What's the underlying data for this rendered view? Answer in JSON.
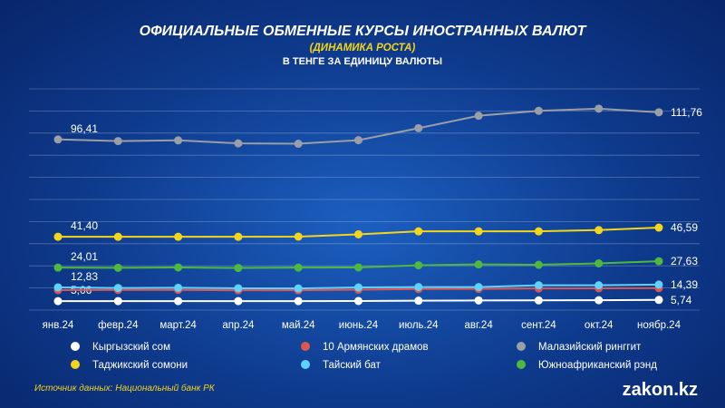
{
  "header": {
    "title": "ОФИЦИАЛЬНЫЕ ОБМЕННЫЕ КУРСЫ ИНОСТРАННЫХ ВАЛЮТ",
    "subtitle": "(ДИНАМИКА РОСТА)",
    "subtitle2": "В ТЕНГЕ ЗА ЕДИНИЦУ ВАЛЮТЫ"
  },
  "footer": {
    "source": "Источник данных: Национальный банк РК",
    "logo": "zakon.kz"
  },
  "chart_data": {
    "type": "line",
    "grid": true,
    "legend_position": "bottom",
    "categories": [
      "янв.24",
      "февр.24",
      "март.24",
      "апр.24",
      "май.24",
      "июнь.24",
      "июль.24",
      "авг.24",
      "сент.24",
      "окт.24",
      "ноябр.24"
    ],
    "ylim": [
      0,
      125
    ],
    "series": [
      {
        "name": "Кыргызский сом",
        "color": "#ffffff",
        "values": [
          5.06,
          5.07,
          5.06,
          5.07,
          5.06,
          5.15,
          5.3,
          5.45,
          5.5,
          5.58,
          5.74
        ],
        "labels": {
          "first": "5,06",
          "last": "5,74"
        }
      },
      {
        "name": "10 Армянских драмов",
        "color": "#e0564f",
        "values": [
          11.3,
          11.4,
          11.4,
          11.2,
          11.2,
          11.5,
          11.9,
          12.0,
          12.2,
          12.3,
          12.4
        ],
        "labels": {
          "first": "",
          "last": ""
        }
      },
      {
        "name": "Малазийский ринггит",
        "color": "#9a9ea6",
        "values": [
          96.41,
          95.5,
          95.9,
          94.2,
          94.0,
          96.0,
          102.8,
          109.8,
          112.6,
          113.8,
          111.76
        ],
        "labels": {
          "first": "96,41",
          "last": "111,76"
        }
      },
      {
        "name": "Таджикский сомони",
        "color": "#f5d51a",
        "values": [
          41.4,
          41.4,
          41.4,
          41.4,
          41.5,
          42.8,
          44.5,
          44.5,
          44.5,
          45.2,
          46.59
        ],
        "labels": {
          "first": "41,40",
          "last": "46,59"
        }
      },
      {
        "name": "Тайский бат",
        "color": "#5fd2ff",
        "values": [
          12.83,
          12.5,
          12.6,
          12.3,
          12.2,
          12.8,
          13.0,
          13.0,
          14.0,
          14.0,
          14.39
        ],
        "labels": {
          "first": "12,83",
          "last": "14,39"
        }
      },
      {
        "name": "Южноафриканский рэнд",
        "color": "#4fb83f",
        "values": [
          24.01,
          23.9,
          24.1,
          23.8,
          24.0,
          24.1,
          25.3,
          25.8,
          25.6,
          26.4,
          27.63
        ],
        "labels": {
          "first": "24,01",
          "last": "27,63"
        }
      }
    ]
  }
}
